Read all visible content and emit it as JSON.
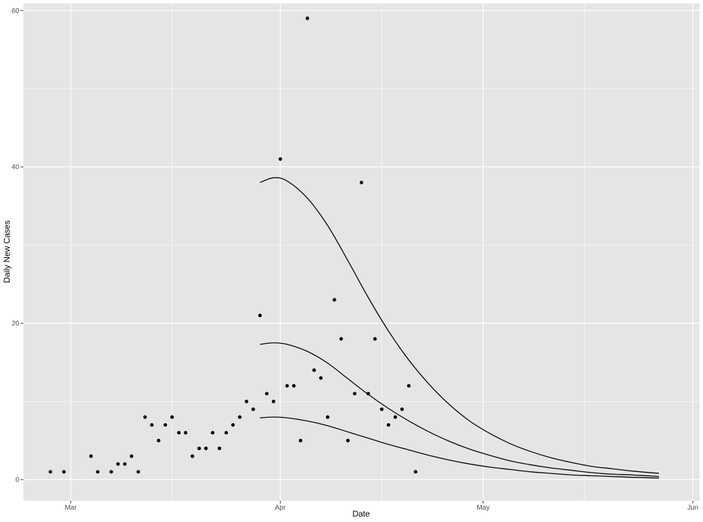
{
  "chart_data": {
    "type": "scatter",
    "title": "",
    "xlabel": "Date",
    "ylabel": "Daily New Cases",
    "x_axis_type": "date",
    "xlim": [
      "2020-02-23",
      "2020-06-02"
    ],
    "ylim": [
      -2.7,
      60.9
    ],
    "grid": true,
    "legend": "none",
    "colors": {
      "panel": "#e5e5e5",
      "grid": "#ffffff",
      "points": "#000000",
      "lines": "#000000",
      "tick_label": "#4d4d4d"
    },
    "x_ticks": [
      {
        "date": "2020-03-01",
        "label": "Mar"
      },
      {
        "date": "2020-04-01",
        "label": "Apr"
      },
      {
        "date": "2020-05-01",
        "label": "May"
      },
      {
        "date": "2020-06-01",
        "label": "Jun"
      }
    ],
    "x_minor_ticks": [
      "2020-03-16",
      "2020-04-16",
      "2020-05-16"
    ],
    "y_ticks": [
      {
        "value": 0,
        "label": "0"
      },
      {
        "value": 20,
        "label": "20"
      },
      {
        "value": 40,
        "label": "40"
      },
      {
        "value": 60,
        "label": "60"
      }
    ],
    "y_minor_ticks": [
      10,
      30,
      50
    ],
    "series": [
      {
        "type": "scatter",
        "points": [
          [
            "2020-02-27",
            1
          ],
          [
            "2020-02-29",
            1
          ],
          [
            "2020-03-04",
            3
          ],
          [
            "2020-03-05",
            1
          ],
          [
            "2020-03-07",
            1
          ],
          [
            "2020-03-08",
            2
          ],
          [
            "2020-03-09",
            2
          ],
          [
            "2020-03-10",
            3
          ],
          [
            "2020-03-11",
            1
          ],
          [
            "2020-03-12",
            8
          ],
          [
            "2020-03-13",
            7
          ],
          [
            "2020-03-14",
            5
          ],
          [
            "2020-03-15",
            7
          ],
          [
            "2020-03-16",
            8
          ],
          [
            "2020-03-17",
            6
          ],
          [
            "2020-03-18",
            6
          ],
          [
            "2020-03-19",
            3
          ],
          [
            "2020-03-20",
            4
          ],
          [
            "2020-03-21",
            4
          ],
          [
            "2020-03-22",
            6
          ],
          [
            "2020-03-23",
            4
          ],
          [
            "2020-03-24",
            6
          ],
          [
            "2020-03-25",
            7
          ],
          [
            "2020-03-26",
            8
          ],
          [
            "2020-03-27",
            10
          ],
          [
            "2020-03-28",
            9
          ],
          [
            "2020-03-29",
            21
          ],
          [
            "2020-03-30",
            11
          ],
          [
            "2020-03-31",
            10
          ],
          [
            "2020-04-01",
            41
          ],
          [
            "2020-04-02",
            12
          ],
          [
            "2020-04-03",
            12
          ],
          [
            "2020-04-04",
            5
          ],
          [
            "2020-04-05",
            59
          ],
          [
            "2020-04-06",
            14
          ],
          [
            "2020-04-07",
            13
          ],
          [
            "2020-04-08",
            8
          ],
          [
            "2020-04-09",
            23
          ],
          [
            "2020-04-10",
            18
          ],
          [
            "2020-04-11",
            5
          ],
          [
            "2020-04-12",
            11
          ],
          [
            "2020-04-13",
            38
          ],
          [
            "2020-04-14",
            11
          ],
          [
            "2020-04-15",
            18
          ],
          [
            "2020-04-16",
            9
          ],
          [
            "2020-04-17",
            7
          ],
          [
            "2020-04-18",
            8
          ],
          [
            "2020-04-19",
            9
          ],
          [
            "2020-04-20",
            12
          ],
          [
            "2020-04-21",
            1
          ]
        ]
      },
      {
        "type": "line",
        "points": [
          [
            "2020-03-29",
            38.0
          ],
          [
            "2020-03-31",
            38.6
          ],
          [
            "2020-04-02",
            38.2
          ],
          [
            "2020-04-05",
            36.0
          ],
          [
            "2020-04-08",
            32.5
          ],
          [
            "2020-04-11",
            28.0
          ],
          [
            "2020-04-14",
            23.3
          ],
          [
            "2020-04-17",
            19.0
          ],
          [
            "2020-04-20",
            15.3
          ],
          [
            "2020-04-23",
            12.2
          ],
          [
            "2020-04-26",
            9.6
          ],
          [
            "2020-04-29",
            7.5
          ],
          [
            "2020-05-02",
            5.9
          ],
          [
            "2020-05-05",
            4.6
          ],
          [
            "2020-05-08",
            3.6
          ],
          [
            "2020-05-11",
            2.8
          ],
          [
            "2020-05-14",
            2.2
          ],
          [
            "2020-05-17",
            1.7
          ],
          [
            "2020-05-20",
            1.4
          ],
          [
            "2020-05-23",
            1.1
          ],
          [
            "2020-05-27",
            0.8
          ]
        ]
      },
      {
        "type": "line",
        "points": [
          [
            "2020-03-29",
            17.3
          ],
          [
            "2020-03-31",
            17.5
          ],
          [
            "2020-04-02",
            17.3
          ],
          [
            "2020-04-05",
            16.4
          ],
          [
            "2020-04-08",
            14.9
          ],
          [
            "2020-04-11",
            12.9
          ],
          [
            "2020-04-14",
            10.9
          ],
          [
            "2020-04-17",
            9.1
          ],
          [
            "2020-04-20",
            7.5
          ],
          [
            "2020-04-23",
            6.1
          ],
          [
            "2020-04-26",
            4.9
          ],
          [
            "2020-04-29",
            3.9
          ],
          [
            "2020-05-02",
            3.1
          ],
          [
            "2020-05-05",
            2.4
          ],
          [
            "2020-05-08",
            1.9
          ],
          [
            "2020-05-11",
            1.5
          ],
          [
            "2020-05-14",
            1.2
          ],
          [
            "2020-05-17",
            0.9
          ],
          [
            "2020-05-20",
            0.7
          ],
          [
            "2020-05-23",
            0.6
          ],
          [
            "2020-05-27",
            0.4
          ]
        ]
      },
      {
        "type": "line",
        "points": [
          [
            "2020-03-29",
            7.9
          ],
          [
            "2020-03-31",
            8.0
          ],
          [
            "2020-04-02",
            7.9
          ],
          [
            "2020-04-05",
            7.5
          ],
          [
            "2020-04-08",
            6.9
          ],
          [
            "2020-04-11",
            6.1
          ],
          [
            "2020-04-14",
            5.3
          ],
          [
            "2020-04-17",
            4.5
          ],
          [
            "2020-04-20",
            3.8
          ],
          [
            "2020-04-23",
            3.1
          ],
          [
            "2020-04-26",
            2.5
          ],
          [
            "2020-04-29",
            2.0
          ],
          [
            "2020-05-02",
            1.6
          ],
          [
            "2020-05-05",
            1.3
          ],
          [
            "2020-05-08",
            1.0
          ],
          [
            "2020-05-11",
            0.8
          ],
          [
            "2020-05-14",
            0.6
          ],
          [
            "2020-05-17",
            0.5
          ],
          [
            "2020-05-20",
            0.4
          ],
          [
            "2020-05-23",
            0.3
          ],
          [
            "2020-05-27",
            0.2
          ]
        ]
      }
    ]
  }
}
